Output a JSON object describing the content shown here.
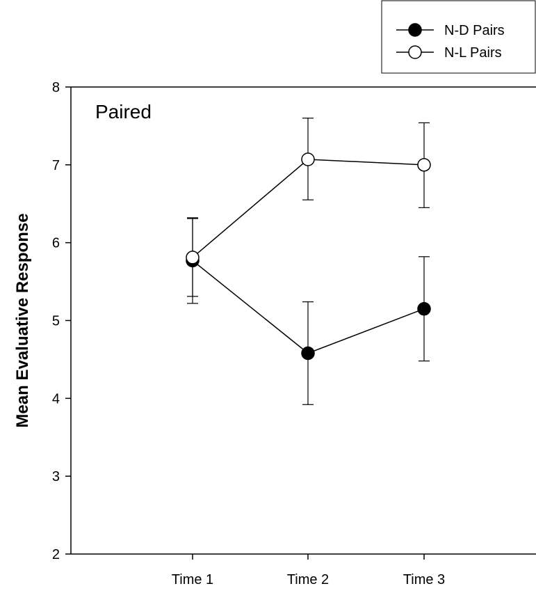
{
  "chart_data": {
    "type": "line",
    "title": "",
    "panel_label": "Paired",
    "xlabel": "",
    "ylabel": "Mean Evaluative Response",
    "categories": [
      "Time 1",
      "Time 2",
      "Time 3"
    ],
    "ylim": [
      2,
      8
    ],
    "yticks": [
      2,
      3,
      4,
      5,
      6,
      7,
      8
    ],
    "grid": false,
    "legend_position": "top-right",
    "series": [
      {
        "name": "N-D Pairs",
        "marker": "filled-circle",
        "color": "#000000",
        "values": [
          5.77,
          4.58,
          5.15
        ],
        "error_low": [
          5.22,
          3.92,
          4.48
        ],
        "error_high": [
          6.31,
          5.24,
          5.82
        ]
      },
      {
        "name": "N-L Pairs",
        "marker": "open-circle",
        "color": "#000000",
        "values": [
          5.81,
          7.07,
          7.0
        ],
        "error_low": [
          5.31,
          6.55,
          6.45
        ],
        "error_high": [
          6.32,
          7.6,
          7.54
        ]
      }
    ]
  }
}
